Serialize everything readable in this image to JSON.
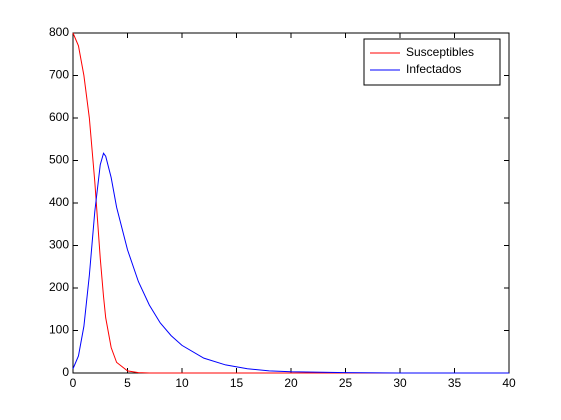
{
  "chart_data": {
    "type": "line",
    "x": [
      0,
      0.5,
      1,
      1.5,
      2,
      2.5,
      2.8,
      3,
      3.5,
      4,
      5,
      6,
      7,
      8,
      9,
      10,
      12,
      14,
      16,
      18,
      20,
      25,
      30,
      40
    ],
    "series": [
      {
        "name": "Susceptibles",
        "color": "#ff0000",
        "values": [
          800,
          770,
          700,
          600,
          450,
          270,
          180,
          130,
          60,
          25,
          5,
          1,
          0,
          0,
          0,
          0,
          0,
          0,
          0,
          0,
          0,
          0,
          0,
          0
        ]
      },
      {
        "name": "Infectados",
        "color": "#0000ff",
        "values": [
          10,
          40,
          110,
          230,
          380,
          490,
          517,
          510,
          460,
          390,
          290,
          215,
          160,
          118,
          88,
          65,
          35,
          19,
          10,
          5,
          3,
          1,
          0,
          0
        ]
      }
    ],
    "xlim": [
      0,
      40
    ],
    "xticks": [
      0,
      5,
      10,
      15,
      20,
      25,
      30,
      35,
      40
    ],
    "ylim": [
      0,
      800
    ],
    "yticks": [
      0,
      100,
      200,
      300,
      400,
      500,
      600,
      700,
      800
    ],
    "legend": "top-right"
  }
}
